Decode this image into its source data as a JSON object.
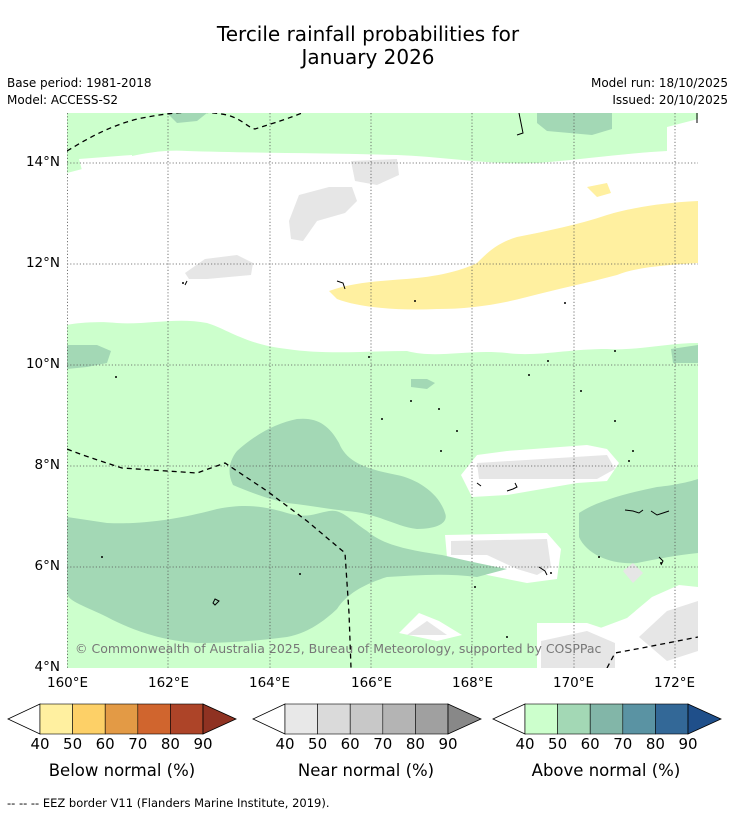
{
  "title": {
    "line1": "Tercile rainfall probabilities for",
    "line2": "January 2026"
  },
  "meta": {
    "base_period": "Base period: 1981-2018",
    "model": "Model: ACCESS-S2",
    "model_run": "Model run: 18/10/2025",
    "issued": "Issued: 20/10/2025"
  },
  "axes": {
    "y_ticks": [
      "14°N",
      "12°N",
      "10°N",
      "8°N",
      "6°N",
      "4°N"
    ],
    "x_ticks": [
      "160°E",
      "162°E",
      "164°E",
      "166°E",
      "168°E",
      "170°E",
      "172°E"
    ]
  },
  "copyright": "© Commonwealth of Australia 2025, Bureau of Meteorology, supported by COSPPac",
  "colorbars": [
    {
      "label": "Below normal (%)",
      "ticks": [
        "40",
        "50",
        "60",
        "70",
        "80",
        "90"
      ],
      "colors": [
        "#fff0a0",
        "#fdd067",
        "#e39a45",
        "#d0652e",
        "#ad4428"
      ],
      "high": "#8f3222"
    },
    {
      "label": "Near normal (%)",
      "ticks": [
        "40",
        "50",
        "60",
        "70",
        "80",
        "90"
      ],
      "colors": [
        "#e8e8e8",
        "#dadada",
        "#c8c8c8",
        "#b4b4b4",
        "#a0a0a0"
      ],
      "high": "#888888"
    },
    {
      "label": "Above normal (%)",
      "ticks": [
        "40",
        "50",
        "60",
        "70",
        "80",
        "90"
      ],
      "colors": [
        "#ccffcc",
        "#a3d8b5",
        "#82b6a8",
        "#5a93a3",
        "#336897"
      ],
      "high": "#1f4f8a"
    }
  ],
  "footer": "--  --  -- EEZ border V11 (Flanders Marine Institute, 2019)."
}
